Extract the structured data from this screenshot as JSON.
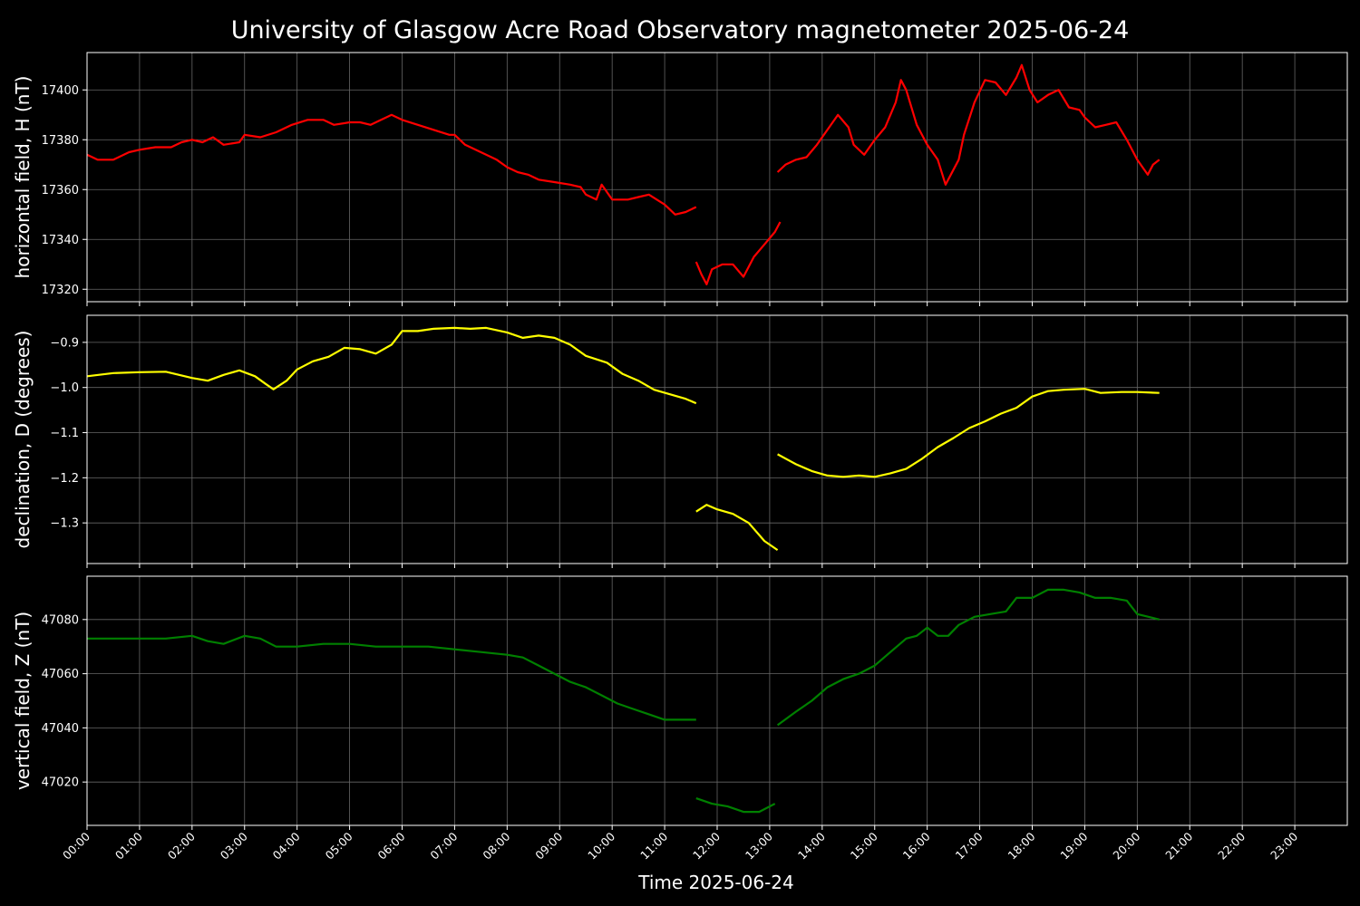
{
  "chart_data": {
    "type": "line",
    "title": "University of Glasgow Acre Road Observatory magnetometer 2025-06-24",
    "xlabel": "Time 2025-06-24",
    "x_unit": "hours",
    "xlim": [
      0,
      24
    ],
    "x_ticks": [
      "00:00",
      "01:00",
      "02:00",
      "03:00",
      "04:00",
      "05:00",
      "06:00",
      "07:00",
      "08:00",
      "09:00",
      "10:00",
      "11:00",
      "12:00",
      "13:00",
      "14:00",
      "15:00",
      "16:00",
      "17:00",
      "18:00",
      "19:00",
      "20:00",
      "21:00",
      "22:00",
      "23:00"
    ],
    "grid": true,
    "background": "#000000",
    "panels": [
      {
        "ylabel": "horizontal field, H (nT)",
        "color": "#ff0000",
        "ylim": [
          17315,
          17415
        ],
        "yticks": [
          17320,
          17340,
          17360,
          17380,
          17400
        ],
        "segments": [
          [
            [
              0,
              17374
            ],
            [
              0.2,
              17372
            ],
            [
              0.5,
              17372
            ],
            [
              0.8,
              17375
            ],
            [
              1.0,
              17376
            ],
            [
              1.3,
              17377
            ],
            [
              1.6,
              17377
            ],
            [
              1.8,
              17379
            ],
            [
              2.0,
              17380
            ],
            [
              2.2,
              17379
            ],
            [
              2.4,
              17381
            ],
            [
              2.6,
              17378
            ],
            [
              2.9,
              17379
            ],
            [
              3.0,
              17382
            ],
            [
              3.3,
              17381
            ],
            [
              3.6,
              17383
            ],
            [
              3.9,
              17386
            ],
            [
              4.2,
              17388
            ],
            [
              4.5,
              17388
            ],
            [
              4.7,
              17386
            ],
            [
              5.0,
              17387
            ],
            [
              5.2,
              17387
            ],
            [
              5.4,
              17386
            ],
            [
              5.6,
              17388
            ],
            [
              5.8,
              17390
            ],
            [
              6.0,
              17388
            ],
            [
              6.3,
              17386
            ],
            [
              6.6,
              17384
            ],
            [
              6.9,
              17382
            ],
            [
              7.0,
              17382
            ],
            [
              7.2,
              17378
            ],
            [
              7.4,
              17376
            ],
            [
              7.6,
              17374
            ],
            [
              7.8,
              17372
            ],
            [
              8.0,
              17369
            ],
            [
              8.2,
              17367
            ],
            [
              8.4,
              17366
            ],
            [
              8.6,
              17364
            ],
            [
              8.9,
              17363
            ],
            [
              9.2,
              17362
            ],
            [
              9.4,
              17361
            ],
            [
              9.5,
              17358
            ],
            [
              9.7,
              17356
            ],
            [
              9.8,
              17362
            ],
            [
              10.0,
              17356
            ],
            [
              10.3,
              17356
            ],
            [
              10.5,
              17357
            ],
            [
              10.7,
              17358
            ],
            [
              11.0,
              17354
            ],
            [
              11.2,
              17350
            ],
            [
              11.4,
              17351
            ],
            [
              11.6,
              17353
            ]
          ],
          [
            [
              11.6,
              17331
            ],
            [
              11.7,
              17326
            ],
            [
              11.8,
              17322
            ],
            [
              11.9,
              17328
            ],
            [
              12.1,
              17330
            ],
            [
              12.3,
              17330
            ],
            [
              12.5,
              17325
            ],
            [
              12.7,
              17333
            ],
            [
              12.9,
              17338
            ],
            [
              13.1,
              17343
            ],
            [
              13.2,
              17347
            ]
          ],
          [
            [
              13.15,
              17367
            ],
            [
              13.3,
              17370
            ],
            [
              13.5,
              17372
            ],
            [
              13.7,
              17373
            ],
            [
              13.9,
              17378
            ],
            [
              14.1,
              17384
            ],
            [
              14.3,
              17390
            ],
            [
              14.5,
              17385
            ],
            [
              14.6,
              17378
            ],
            [
              14.8,
              17374
            ],
            [
              15.0,
              17380
            ],
            [
              15.2,
              17385
            ],
            [
              15.4,
              17395
            ],
            [
              15.5,
              17404
            ],
            [
              15.6,
              17400
            ],
            [
              15.8,
              17386
            ],
            [
              16.0,
              17378
            ],
            [
              16.2,
              17372
            ],
            [
              16.35,
              17362
            ],
            [
              16.5,
              17368
            ],
            [
              16.6,
              17372
            ],
            [
              16.7,
              17382
            ],
            [
              16.9,
              17395
            ],
            [
              17.1,
              17404
            ],
            [
              17.3,
              17403
            ],
            [
              17.5,
              17398
            ],
            [
              17.7,
              17405
            ],
            [
              17.8,
              17410
            ],
            [
              17.95,
              17400
            ],
            [
              18.1,
              17395
            ],
            [
              18.3,
              17398
            ],
            [
              18.5,
              17400
            ],
            [
              18.7,
              17393
            ],
            [
              18.9,
              17392
            ],
            [
              19.0,
              17389
            ],
            [
              19.2,
              17385
            ],
            [
              19.4,
              17386
            ],
            [
              19.6,
              17387
            ],
            [
              19.8,
              17380
            ],
            [
              20.0,
              17372
            ],
            [
              20.2,
              17366
            ],
            [
              20.3,
              17370
            ],
            [
              20.42,
              17372
            ]
          ]
        ]
      },
      {
        "ylabel": "declination, D (degrees)",
        "color": "#ffff00",
        "ylim": [
          -1.39,
          -0.84
        ],
        "yticks": [
          -0.9,
          -1.0,
          -1.1,
          -1.2,
          -1.3
        ],
        "ytick_labels": [
          "−0.9",
          "−1.0",
          "−1.1",
          "−1.2",
          "−1.3"
        ],
        "segments": [
          [
            [
              0,
              -0.975
            ],
            [
              0.5,
              -0.968
            ],
            [
              1.0,
              -0.966
            ],
            [
              1.5,
              -0.965
            ],
            [
              2.0,
              -0.979
            ],
            [
              2.3,
              -0.985
            ],
            [
              2.6,
              -0.972
            ],
            [
              2.9,
              -0.962
            ],
            [
              3.2,
              -0.975
            ],
            [
              3.4,
              -0.992
            ],
            [
              3.55,
              -1.004
            ],
            [
              3.8,
              -0.985
            ],
            [
              4.0,
              -0.96
            ],
            [
              4.3,
              -0.942
            ],
            [
              4.6,
              -0.932
            ],
            [
              4.9,
              -0.912
            ],
            [
              5.2,
              -0.915
            ],
            [
              5.5,
              -0.925
            ],
            [
              5.8,
              -0.905
            ],
            [
              6.0,
              -0.875
            ],
            [
              6.3,
              -0.875
            ],
            [
              6.6,
              -0.87
            ],
            [
              7.0,
              -0.868
            ],
            [
              7.3,
              -0.87
            ],
            [
              7.6,
              -0.868
            ],
            [
              8.0,
              -0.878
            ],
            [
              8.3,
              -0.89
            ],
            [
              8.6,
              -0.885
            ],
            [
              8.9,
              -0.89
            ],
            [
              9.2,
              -0.905
            ],
            [
              9.5,
              -0.93
            ],
            [
              9.9,
              -0.945
            ],
            [
              10.2,
              -0.97
            ],
            [
              10.5,
              -0.985
            ],
            [
              10.8,
              -1.005
            ],
            [
              11.1,
              -1.015
            ],
            [
              11.4,
              -1.025
            ],
            [
              11.6,
              -1.035
            ]
          ],
          [
            [
              11.6,
              -1.275
            ],
            [
              11.8,
              -1.26
            ],
            [
              12.0,
              -1.27
            ],
            [
              12.3,
              -1.28
            ],
            [
              12.6,
              -1.3
            ],
            [
              12.9,
              -1.34
            ],
            [
              13.15,
              -1.36
            ]
          ],
          [
            [
              13.15,
              -1.148
            ],
            [
              13.5,
              -1.17
            ],
            [
              13.8,
              -1.185
            ],
            [
              14.1,
              -1.195
            ],
            [
              14.4,
              -1.198
            ],
            [
              14.7,
              -1.195
            ],
            [
              15.0,
              -1.198
            ],
            [
              15.3,
              -1.19
            ],
            [
              15.6,
              -1.18
            ],
            [
              15.9,
              -1.158
            ],
            [
              16.2,
              -1.132
            ],
            [
              16.5,
              -1.112
            ],
            [
              16.8,
              -1.09
            ],
            [
              17.1,
              -1.075
            ],
            [
              17.4,
              -1.058
            ],
            [
              17.7,
              -1.045
            ],
            [
              18.0,
              -1.02
            ],
            [
              18.3,
              -1.008
            ],
            [
              18.6,
              -1.005
            ],
            [
              19.0,
              -1.003
            ],
            [
              19.3,
              -1.012
            ],
            [
              19.7,
              -1.01
            ],
            [
              20.0,
              -1.01
            ],
            [
              20.42,
              -1.012
            ]
          ]
        ]
      },
      {
        "ylabel": "vertical field, Z (nT)",
        "color": "#008000",
        "ylim": [
          47004,
          47096
        ],
        "yticks": [
          47020,
          47040,
          47060,
          47080
        ],
        "segments": [
          [
            [
              0,
              47073
            ],
            [
              0.5,
              47073
            ],
            [
              1.0,
              47073
            ],
            [
              1.5,
              47073
            ],
            [
              2.0,
              47074
            ],
            [
              2.3,
              47072
            ],
            [
              2.6,
              47071
            ],
            [
              3.0,
              47074
            ],
            [
              3.3,
              47073
            ],
            [
              3.6,
              47070
            ],
            [
              4.0,
              47070
            ],
            [
              4.5,
              47071
            ],
            [
              5.0,
              47071
            ],
            [
              5.5,
              47070
            ],
            [
              6.0,
              47070
            ],
            [
              6.5,
              47070
            ],
            [
              7.0,
              47069
            ],
            [
              7.5,
              47068
            ],
            [
              8.0,
              47067
            ],
            [
              8.3,
              47066
            ],
            [
              8.6,
              47063
            ],
            [
              8.9,
              47060
            ],
            [
              9.2,
              47057
            ],
            [
              9.5,
              47055
            ],
            [
              9.8,
              47052
            ],
            [
              10.1,
              47049
            ],
            [
              10.4,
              47047
            ],
            [
              10.7,
              47045
            ],
            [
              11.0,
              47043
            ],
            [
              11.3,
              47043
            ],
            [
              11.6,
              47043
            ]
          ],
          [
            [
              11.6,
              47014
            ],
            [
              11.9,
              47012
            ],
            [
              12.2,
              47011
            ],
            [
              12.5,
              47009
            ],
            [
              12.8,
              47009
            ],
            [
              13.1,
              47012
            ]
          ],
          [
            [
              13.15,
              47041
            ],
            [
              13.5,
              47046
            ],
            [
              13.8,
              47050
            ],
            [
              14.1,
              47055
            ],
            [
              14.4,
              47058
            ],
            [
              14.7,
              47060
            ],
            [
              15.0,
              47063
            ],
            [
              15.3,
              47068
            ],
            [
              15.6,
              47073
            ],
            [
              15.8,
              47074
            ],
            [
              16.0,
              47077
            ],
            [
              16.2,
              47074
            ],
            [
              16.4,
              47074
            ],
            [
              16.6,
              47078
            ],
            [
              16.9,
              47081
            ],
            [
              17.2,
              47082
            ],
            [
              17.5,
              47083
            ],
            [
              17.7,
              47088
            ],
            [
              18.0,
              47088
            ],
            [
              18.3,
              47091
            ],
            [
              18.6,
              47091
            ],
            [
              18.9,
              47090
            ],
            [
              19.2,
              47088
            ],
            [
              19.5,
              47088
            ],
            [
              19.8,
              47087
            ],
            [
              20.0,
              47082
            ],
            [
              20.42,
              47080
            ]
          ]
        ]
      }
    ]
  }
}
